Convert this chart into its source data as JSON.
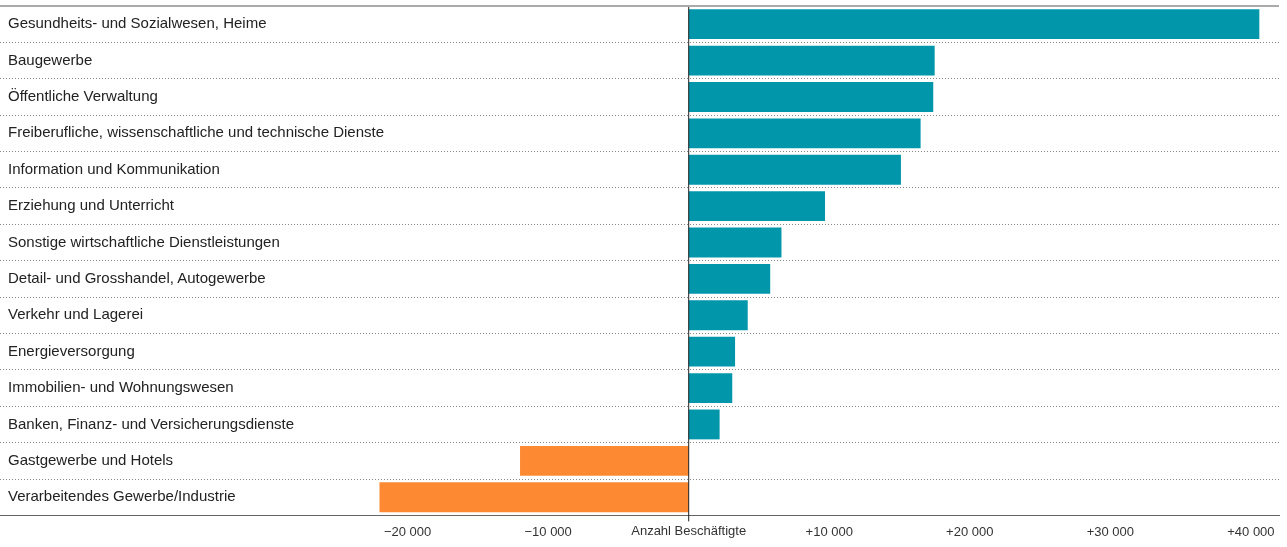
{
  "chart_data": {
    "type": "bar",
    "orientation": "horizontal",
    "xlabel": "Anzahl Beschäftigte",
    "categories": [
      "Gesundheits- und Sozialwesen, Heime",
      "Baugewerbe",
      "Öffentliche Verwaltung",
      "Freiberufliche, wissenschaftliche und technische Dienste",
      "Information und Kommunikation",
      "Erziehung und Unterricht",
      "Sonstige wirtschaftliche Dienstleistungen",
      "Detail- und Grosshandel, Autogewerbe",
      "Verkehr und Lagerei",
      "Energieversorgung",
      "Immobilien- und Wohnungswesen",
      "Banken, Finanz- und Versicherungsdienste",
      "Gastgewerbe und Hotels",
      "Verarbeitendes Gewerbe/Industrie"
    ],
    "values": [
      40600,
      17500,
      17400,
      16500,
      15100,
      9700,
      6600,
      5800,
      4200,
      3300,
      3100,
      2200,
      -12000,
      -22000
    ],
    "colors": [
      "#0296ab",
      "#0296ab",
      "#0296ab",
      "#0296ab",
      "#0296ab",
      "#0296ab",
      "#0296ab",
      "#0296ab",
      "#0296ab",
      "#0296ab",
      "#0296ab",
      "#0296ab",
      "#fd8a33",
      "#fd8a33"
    ],
    "xlim": [
      -49000,
      42000
    ],
    "xticks": [
      {
        "value": -20000,
        "label": "−20 000"
      },
      {
        "value": -10000,
        "label": "−10 000"
      },
      {
        "value": 10000,
        "label": "+10 000"
      },
      {
        "value": 20000,
        "label": "+20 000"
      },
      {
        "value": 30000,
        "label": "+30 000"
      },
      {
        "value": 40000,
        "label": "+40 000"
      }
    ],
    "grid": "y",
    "legend": false
  }
}
